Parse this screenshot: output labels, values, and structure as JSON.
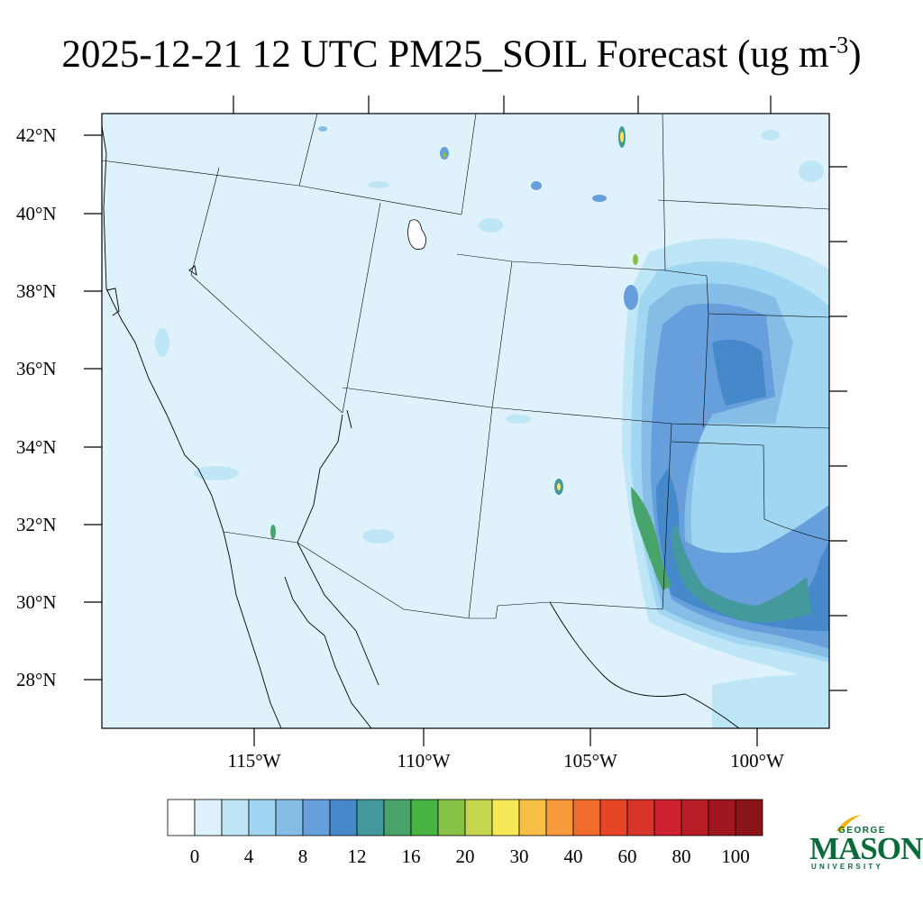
{
  "title": {
    "text": "2025-12-21 12 UTC PM25_SOIL Forecast (ug m",
    "sup": "-3",
    "close": ")"
  },
  "map": {
    "lat_labels": [
      "42°N",
      "40°N",
      "38°N",
      "36°N",
      "34°N",
      "32°N",
      "30°N",
      "28°N"
    ],
    "lon_labels": [
      "115°W",
      "110°W",
      "105°W",
      "100°W"
    ],
    "background_color": "#dff2fb"
  },
  "colorbar": {
    "colors": [
      "#ffffff",
      "#dff2fb",
      "#bfe6f7",
      "#a0d6f2",
      "#85bde6",
      "#669fdb",
      "#4689ca",
      "#43999b",
      "#48a46b",
      "#47b340",
      "#86c348",
      "#c7d64f",
      "#f6e856",
      "#f8bf47",
      "#f6993a",
      "#f16b2c",
      "#e84528",
      "#d8352a",
      "#cf2030",
      "#b81d25",
      "#a1171f",
      "#8b1419"
    ],
    "labels": [
      "0",
      "4",
      "8",
      "12",
      "16",
      "20",
      "30",
      "40",
      "60",
      "80",
      "100"
    ]
  },
  "logo": {
    "line1": "GEORGE",
    "line2": "MASON",
    "line3": "UNIVERSITY",
    "color": "#0b6a3a",
    "accent": "#f2b705"
  }
}
